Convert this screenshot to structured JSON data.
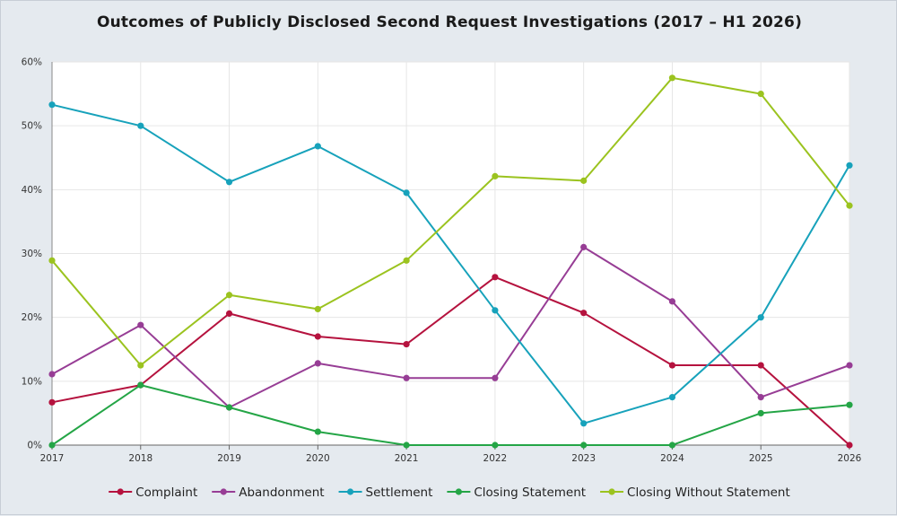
{
  "chart_data": {
    "type": "line",
    "title": "Outcomes of Publicly Disclosed Second Request Investigations (2017 – H1 2026)",
    "xlabel": "",
    "ylabel": "",
    "x": [
      "2017",
      "2018",
      "2019",
      "2020",
      "2021",
      "2022",
      "2023",
      "2024",
      "2025",
      "2026"
    ],
    "ylim": [
      0,
      60
    ],
    "yticks": [
      0,
      10,
      20,
      30,
      40,
      50,
      60
    ],
    "ytick_labels": [
      "0%",
      "10%",
      "20%",
      "30%",
      "40%",
      "50%",
      "60%"
    ],
    "grid": true,
    "legend_position": "bottom",
    "series": [
      {
        "name": "Complaint",
        "color": "#b5123e",
        "values": [
          6.7,
          9.4,
          20.6,
          17.0,
          15.8,
          26.3,
          20.7,
          12.5,
          12.5,
          0
        ]
      },
      {
        "name": "Abandonment",
        "color": "#973d95",
        "values": [
          11.1,
          18.8,
          5.9,
          12.8,
          10.5,
          10.5,
          31.0,
          22.5,
          7.5,
          12.5
        ]
      },
      {
        "name": "Settlement",
        "color": "#17a2bb",
        "values": [
          53.3,
          50.0,
          41.2,
          46.8,
          39.5,
          21.1,
          3.4,
          7.5,
          20.0,
          43.8
        ]
      },
      {
        "name": "Closing Statement",
        "color": "#24a546",
        "values": [
          0,
          9.4,
          5.9,
          2.1,
          0,
          0,
          0,
          0,
          5.0,
          6.3
        ]
      },
      {
        "name": "Closing Without Statement",
        "color": "#9bc31f",
        "values": [
          28.9,
          12.5,
          23.5,
          21.3,
          28.9,
          42.1,
          41.4,
          57.5,
          55.0,
          37.5
        ]
      }
    ]
  }
}
